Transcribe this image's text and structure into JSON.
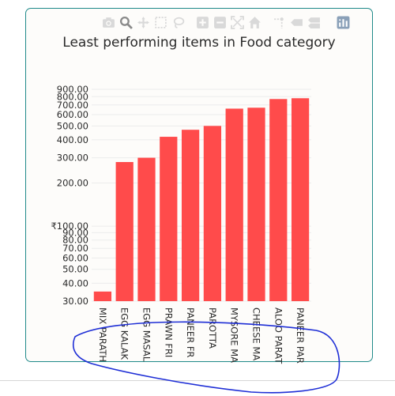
{
  "modebar": {
    "buttons": [
      "camera-icon",
      "zoom-icon",
      "pan-icon",
      "box-select-icon",
      "lasso-icon",
      "zoom-in-icon",
      "zoom-out-icon",
      "autoscale-icon",
      "reset-axes-icon",
      "spike-lines-icon",
      "hover-closest-icon",
      "hover-compare-icon",
      "plotly-logo-icon"
    ]
  },
  "colors": {
    "bar": "#ff4b4b",
    "border": "#1f8a8a",
    "annotation": "#1f2fd6"
  },
  "chart_data": {
    "type": "bar",
    "title": "Least performing items in Food category",
    "yscale": "log",
    "ylim": [
      30,
      900
    ],
    "grid": true,
    "categories": [
      "MIX PARATH",
      "EGG KALAK",
      "EGG MASAL",
      "PRAWN FRI",
      "PANEER FR",
      "PAROTTA",
      "MYSORE MA",
      "CHEESE MA",
      "ALOO PARAT",
      "PANEER PAR"
    ],
    "values": [
      35,
      280,
      300,
      420,
      470,
      500,
      660,
      670,
      770,
      780
    ],
    "yticks": [
      {
        "v": 30,
        "label": "30.00"
      },
      {
        "v": 40,
        "label": "40.00"
      },
      {
        "v": 50,
        "label": "50.00"
      },
      {
        "v": 60,
        "label": "60.00"
      },
      {
        "v": 70,
        "label": "70.00"
      },
      {
        "v": 80,
        "label": "80.00"
      },
      {
        "v": 90,
        "label": "90.00"
      },
      {
        "v": 100,
        "label": "₹100.00"
      },
      {
        "v": 200,
        "label": "200.00"
      },
      {
        "v": 300,
        "label": "300.00"
      },
      {
        "v": 400,
        "label": "400.00"
      },
      {
        "v": 500,
        "label": "500.00"
      },
      {
        "v": 600,
        "label": "600.00"
      },
      {
        "v": 700,
        "label": "700.00"
      },
      {
        "v": 800,
        "label": "800.00"
      },
      {
        "v": 900,
        "label": "900.00"
      }
    ]
  }
}
